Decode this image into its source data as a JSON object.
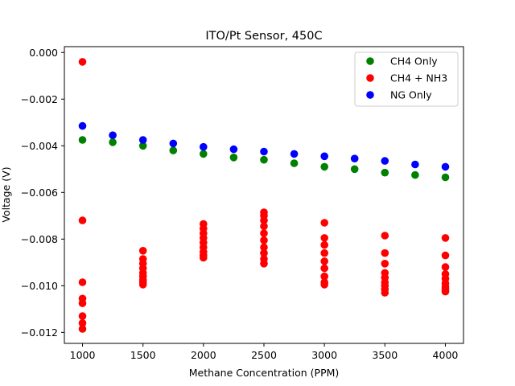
{
  "chart_data": {
    "type": "scatter",
    "title": "ITO/Pt Sensor, 450C",
    "xlabel": "Methane Concentration (PPM)",
    "ylabel": "Voltage (V)",
    "xlim": [
      850,
      4150
    ],
    "ylim": [
      -0.01247,
      0.00025
    ],
    "xticks": [
      1000,
      1500,
      2000,
      2500,
      3000,
      3500,
      4000
    ],
    "xtick_labels": [
      "1000",
      "1500",
      "2000",
      "2500",
      "3000",
      "3500",
      "4000"
    ],
    "yticks": [
      0.0,
      -0.002,
      -0.004,
      -0.006,
      -0.008,
      -0.01,
      -0.012
    ],
    "ytick_labels": [
      "0.000",
      "−0.002",
      "−0.004",
      "−0.006",
      "−0.008",
      "−0.010",
      "−0.012"
    ],
    "grid": false,
    "legend_position": "top-right",
    "series": [
      {
        "name": "CH4 Only",
        "color": "#008000",
        "points": [
          [
            1000,
            -0.00375
          ],
          [
            1250,
            -0.00385
          ],
          [
            1500,
            -0.004
          ],
          [
            1750,
            -0.0042
          ],
          [
            2000,
            -0.00435
          ],
          [
            2250,
            -0.0045
          ],
          [
            2500,
            -0.0046
          ],
          [
            2750,
            -0.00475
          ],
          [
            3000,
            -0.0049
          ],
          [
            3250,
            -0.005
          ],
          [
            3500,
            -0.00515
          ],
          [
            3750,
            -0.00525
          ],
          [
            4000,
            -0.00535
          ]
        ]
      },
      {
        "name": "CH4 + NH3",
        "color": "#ff0000",
        "points": [
          [
            1000,
            -0.0004
          ],
          [
            1000,
            -0.0072
          ],
          [
            1000,
            -0.00985
          ],
          [
            1000,
            -0.01055
          ],
          [
            1000,
            -0.01075
          ],
          [
            1000,
            -0.0113
          ],
          [
            1000,
            -0.0116
          ],
          [
            1000,
            -0.01185
          ],
          [
            1500,
            -0.0085
          ],
          [
            1500,
            -0.00885
          ],
          [
            1500,
            -0.00905
          ],
          [
            1500,
            -0.00925
          ],
          [
            1500,
            -0.00945
          ],
          [
            1500,
            -0.0096
          ],
          [
            1500,
            -0.00975
          ],
          [
            1500,
            -0.00985
          ],
          [
            1500,
            -0.00995
          ],
          [
            2000,
            -0.00735
          ],
          [
            2000,
            -0.00755
          ],
          [
            2000,
            -0.00775
          ],
          [
            2000,
            -0.00795
          ],
          [
            2000,
            -0.00815
          ],
          [
            2000,
            -0.00835
          ],
          [
            2000,
            -0.00855
          ],
          [
            2000,
            -0.0087
          ],
          [
            2000,
            -0.0088
          ],
          [
            2500,
            -0.00685
          ],
          [
            2500,
            -0.007
          ],
          [
            2500,
            -0.0072
          ],
          [
            2500,
            -0.00745
          ],
          [
            2500,
            -0.00775
          ],
          [
            2500,
            -0.00805
          ],
          [
            2500,
            -0.00835
          ],
          [
            2500,
            -0.0086
          ],
          [
            2500,
            -0.00885
          ],
          [
            2500,
            -0.00905
          ],
          [
            3000,
            -0.0073
          ],
          [
            3000,
            -0.00795
          ],
          [
            3000,
            -0.00825
          ],
          [
            3000,
            -0.0086
          ],
          [
            3000,
            -0.00895
          ],
          [
            3000,
            -0.00925
          ],
          [
            3000,
            -0.0096
          ],
          [
            3000,
            -0.00985
          ],
          [
            3000,
            -0.00995
          ],
          [
            3500,
            -0.00785
          ],
          [
            3500,
            -0.0086
          ],
          [
            3500,
            -0.00905
          ],
          [
            3500,
            -0.00945
          ],
          [
            3500,
            -0.00965
          ],
          [
            3500,
            -0.00985
          ],
          [
            3500,
            -0.01
          ],
          [
            3500,
            -0.01015
          ],
          [
            3500,
            -0.0103
          ],
          [
            4000,
            -0.00795
          ],
          [
            4000,
            -0.0087
          ],
          [
            4000,
            -0.0092
          ],
          [
            4000,
            -0.0095
          ],
          [
            4000,
            -0.0097
          ],
          [
            4000,
            -0.0099
          ],
          [
            4000,
            -0.01005
          ],
          [
            4000,
            -0.01015
          ],
          [
            4000,
            -0.01025
          ]
        ]
      },
      {
        "name": "NG Only",
        "color": "#0000ff",
        "points": [
          [
            1000,
            -0.00315
          ],
          [
            1250,
            -0.00355
          ],
          [
            1500,
            -0.00375
          ],
          [
            1750,
            -0.0039
          ],
          [
            2000,
            -0.00405
          ],
          [
            2250,
            -0.00415
          ],
          [
            2500,
            -0.00425
          ],
          [
            2750,
            -0.00435
          ],
          [
            3000,
            -0.00445
          ],
          [
            3250,
            -0.00455
          ],
          [
            3500,
            -0.00465
          ],
          [
            3750,
            -0.0048
          ],
          [
            4000,
            -0.0049
          ]
        ]
      }
    ]
  }
}
